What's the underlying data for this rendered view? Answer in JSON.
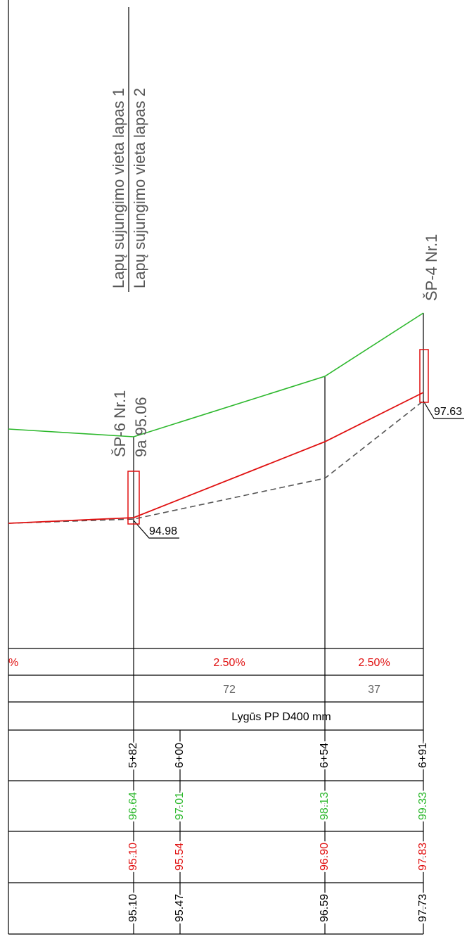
{
  "labels": {
    "joint_sheet_1": "Lapų sujungimo vieta lapas 1",
    "joint_sheet_2": "Lapų sujungimo vieta lapas 2",
    "well_1": "ŠP-6 Nr.1",
    "well_1_note": "9a 95.06",
    "well_2": "ŠP-4 Nr.1",
    "level_1": "94.98",
    "level_2": "97.63"
  },
  "table": {
    "slopes": [
      "%",
      "2.50%",
      "2.50%"
    ],
    "lengths": [
      "72",
      "37"
    ],
    "material": "Lygūs PP D400 mm",
    "stations": [
      "5+82",
      "6+00",
      "6+54",
      "6+91"
    ],
    "ground": [
      "96.64",
      "97.01",
      "98.13",
      "99.33"
    ],
    "design": [
      "95.10",
      "95.54",
      "96.90",
      "97.83"
    ],
    "existing": [
      "95.10",
      "95.47",
      "96.59",
      "97.73"
    ]
  }
}
